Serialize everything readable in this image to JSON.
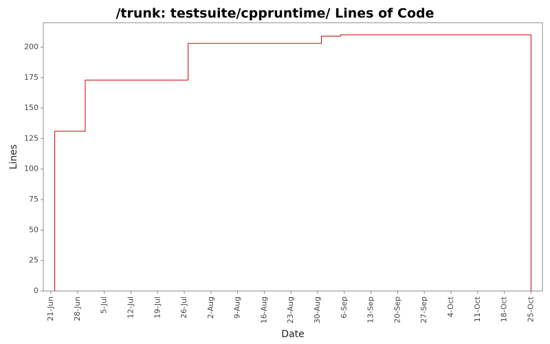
{
  "chart_data": {
    "type": "line",
    "step": true,
    "title": "/trunk: testsuite/cppruntime/ Lines of Code",
    "x_label": "Date",
    "y_label": "Lines",
    "x": [
      1,
      1,
      9,
      36,
      71,
      76,
      126
    ],
    "series": [
      {
        "name": "Lines",
        "color": "#cc0000",
        "values": [
          0,
          131,
          173,
          203,
          209,
          210,
          0
        ]
      }
    ],
    "xlim": [
      -2,
      129
    ],
    "xticks": [
      {
        "value": 0,
        "label": "21-Jun"
      },
      {
        "value": 7,
        "label": "28-Jun"
      },
      {
        "value": 14,
        "label": "5-Jul"
      },
      {
        "value": 21,
        "label": "12-Jul"
      },
      {
        "value": 28,
        "label": "19-Jul"
      },
      {
        "value": 35,
        "label": "26-Jul"
      },
      {
        "value": 42,
        "label": "2-Aug"
      },
      {
        "value": 49,
        "label": "9-Aug"
      },
      {
        "value": 56,
        "label": "16-Aug"
      },
      {
        "value": 63,
        "label": "23-Aug"
      },
      {
        "value": 70,
        "label": "30-Aug"
      },
      {
        "value": 77,
        "label": "6-Sep"
      },
      {
        "value": 84,
        "label": "13-Sep"
      },
      {
        "value": 91,
        "label": "20-Sep"
      },
      {
        "value": 98,
        "label": "27-Sep"
      },
      {
        "value": 105,
        "label": "4-Oct"
      },
      {
        "value": 112,
        "label": "11-Oct"
      },
      {
        "value": 119,
        "label": "18-Oct"
      },
      {
        "value": 126,
        "label": "25-Oct"
      }
    ],
    "ylim": [
      0,
      220
    ],
    "yticks": [
      0,
      25,
      50,
      75,
      100,
      125,
      150,
      175,
      200
    ],
    "grid": false
  }
}
